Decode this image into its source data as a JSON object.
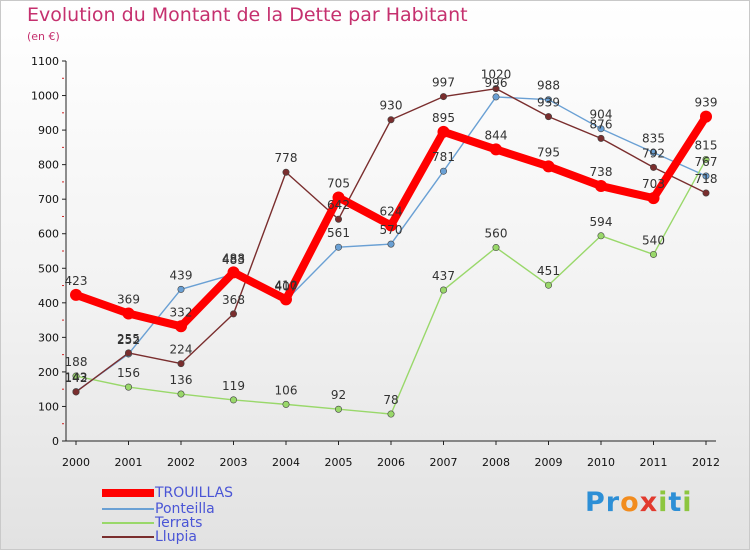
{
  "title": "Evolution du Montant de la Dette par Habitant",
  "unit": "(en €)",
  "logo": {
    "text": "Proxiti",
    "letter_colors": [
      "#2d8fd6",
      "#2d8fd6",
      "#f28c1e",
      "#e23a2e",
      "#8dc63f",
      "#2d8fd6",
      "#8dc63f"
    ]
  },
  "chart_data": {
    "type": "line",
    "title": "Evolution du Montant de la Dette par Habitant",
    "subtitle": "(en €)",
    "xlabel": "",
    "ylabel": "",
    "x": [
      "2000",
      "2001",
      "2002",
      "2003",
      "2004",
      "2005",
      "2006",
      "2007",
      "2008",
      "2009",
      "2010",
      "2011",
      "2012"
    ],
    "y_ticks": [
      0,
      100,
      200,
      300,
      400,
      500,
      600,
      700,
      800,
      900,
      1000,
      1100
    ],
    "ylim": [
      0,
      1100
    ],
    "grid": false,
    "legend_position": "bottom-left",
    "series": [
      {
        "name": "TROUILLAS",
        "color": "#ff0000",
        "values": [
          423,
          369,
          332,
          488,
          410,
          705,
          624,
          895,
          844,
          795,
          738,
          703,
          939
        ],
        "labels": [
          "423",
          "369",
          "332",
          "488",
          "410",
          "705",
          "624",
          "895",
          "844",
          "795",
          "738",
          "703",
          "939"
        ]
      },
      {
        "name": "Ponteilla",
        "color": "#6aa0d4",
        "values": [
          143,
          252,
          439,
          483,
          407,
          561,
          570,
          781,
          996,
          988,
          904,
          835,
          767
        ],
        "labels": [
          "143",
          "252",
          "439",
          "483",
          "407",
          "561",
          "570",
          "781",
          "996",
          "988",
          "904",
          "835",
          "767"
        ]
      },
      {
        "name": "Terrats",
        "color": "#99d86a",
        "values": [
          188,
          156,
          136,
          119,
          106,
          92,
          78,
          437,
          560,
          451,
          594,
          540,
          815
        ],
        "labels": [
          "188",
          "156",
          "136",
          "119",
          "106",
          "92",
          "78",
          "437",
          "560",
          "451",
          "594",
          "540",
          "815"
        ]
      },
      {
        "name": "Llupia",
        "color": "#7a2e2e",
        "values": [
          142,
          255,
          224,
          368,
          778,
          642,
          930,
          997,
          1020,
          939,
          876,
          792,
          718
        ],
        "labels": [
          "142",
          "255",
          "224",
          "368",
          "778",
          "642",
          "930",
          "997",
          "1020",
          "939",
          "876",
          "792",
          "718"
        ]
      }
    ]
  }
}
